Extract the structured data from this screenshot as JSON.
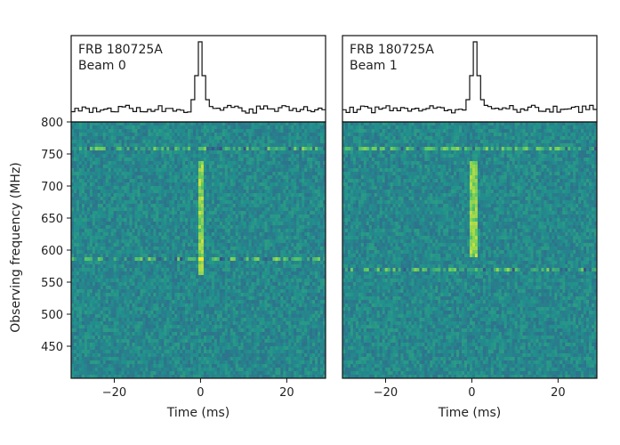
{
  "chart_data": [
    {
      "type": "heatmap",
      "panel_label_line1": "FRB 180725A",
      "panel_label_line2": "Beam 0",
      "xlabel": "Time (ms)",
      "ylabel": "Observing frequency (MHz)",
      "xlim": [
        -30,
        29
      ],
      "ylim": [
        400,
        800
      ],
      "x_ticks": [
        -20,
        0,
        20
      ],
      "x_tick_labels": [
        "−20",
        "0",
        "20"
      ],
      "y_ticks": [
        450,
        500,
        550,
        600,
        650,
        700,
        750,
        800
      ],
      "y_tick_labels": [
        "450",
        "500",
        "550",
        "600",
        "650",
        "700",
        "750",
        "800"
      ],
      "colormap": "viridis",
      "pulse": {
        "time_ms": 0,
        "freq_range_mhz": [
          560,
          740
        ]
      },
      "bright_rfi_channels_mhz": [
        585,
        760
      ],
      "profile": {
        "peak_time_ms": 0
      }
    },
    {
      "type": "heatmap",
      "panel_label_line1": "FRB 180725A",
      "panel_label_line2": "Beam 1",
      "xlabel": "Time (ms)",
      "ylabel": "",
      "xlim": [
        -30,
        29
      ],
      "ylim": [
        400,
        800
      ],
      "x_ticks": [
        -20,
        0,
        20
      ],
      "x_tick_labels": [
        "−20",
        "0",
        "20"
      ],
      "y_ticks": [],
      "y_tick_labels": [],
      "colormap": "viridis",
      "pulse": {
        "time_ms": 0.5,
        "freq_range_mhz": [
          590,
          740
        ]
      },
      "bright_rfi_channels_mhz": [
        570,
        760
      ],
      "profile": {
        "peak_time_ms": 0.5
      }
    }
  ],
  "colors": {
    "heatmap_base": "#2d7a8c",
    "heatmap_bright": "#c8e040",
    "axis": "#111111"
  }
}
